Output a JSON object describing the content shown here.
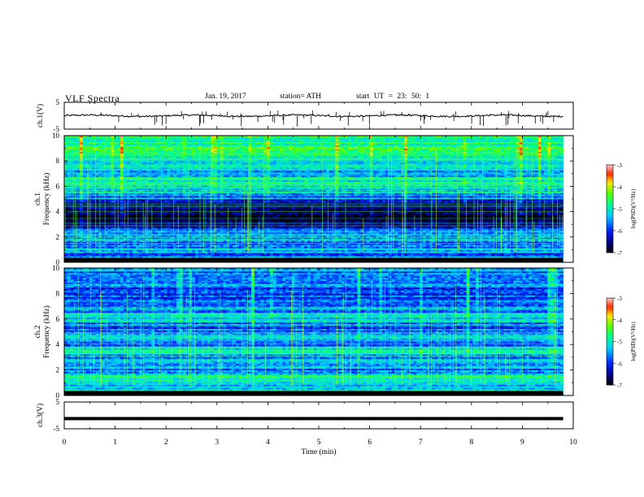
{
  "header": {
    "title": "VLF  Spectra",
    "date": "Jan. 19, 2017",
    "station": "station= ATH",
    "start": "start  UT  =   23: 50: 1"
  },
  "chart_data": [
    {
      "type": "line",
      "panel": "ch1-waveform",
      "ylabel": "ch.1(V)",
      "yticks": [
        "5",
        "-5"
      ],
      "ylim": [
        -5,
        5
      ],
      "xlim": [
        0,
        10
      ],
      "baseline_value": 0,
      "noise_amplitude": 0.6,
      "data_end_min": 9.8,
      "color": "#000000"
    },
    {
      "type": "heatmap",
      "panel": "ch1-spectrogram",
      "ylabel": "ch.1\nFrequency  (kHz)",
      "ylabel_top": "ch.1",
      "ylabel_bottom": "Frequency  (kHz)",
      "yticks": [
        "10",
        "8",
        "6",
        "4",
        "2",
        "0"
      ],
      "ylim": [
        0,
        10
      ],
      "xlim": [
        0,
        10
      ],
      "data_end_min": 9.8,
      "colorbar": {
        "label": "log(PSD)(V²/Hz)",
        "ticks": [
          "-3",
          "-4",
          "-5",
          "-6",
          "-7"
        ],
        "range": [
          -7,
          -3
        ]
      },
      "profile": [
        [
          0.0,
          -6.9
        ],
        [
          0.3,
          -5.0
        ],
        [
          0.6,
          -5.8
        ],
        [
          1.0,
          -5.3
        ],
        [
          1.5,
          -5.7
        ],
        [
          2.0,
          -5.2
        ],
        [
          2.5,
          -5.6
        ],
        [
          3.0,
          -6.6
        ],
        [
          3.5,
          -6.8
        ],
        [
          4.5,
          -6.8
        ],
        [
          5.0,
          -5.8
        ],
        [
          5.5,
          -5.2
        ],
        [
          6.0,
          -5.0
        ],
        [
          6.5,
          -4.9
        ],
        [
          7.0,
          -5.4
        ],
        [
          7.5,
          -5.2
        ],
        [
          8.0,
          -4.9
        ],
        [
          9.0,
          -4.7
        ],
        [
          10.0,
          -4.5
        ]
      ]
    },
    {
      "type": "heatmap",
      "panel": "ch2-spectrogram",
      "ylabel": "ch.2\nFrequency  (kHz)",
      "ylabel_top": "ch.2",
      "ylabel_bottom": "Frequency  (kHz)",
      "yticks": [
        "10",
        "8",
        "6",
        "4",
        "2",
        "0"
      ],
      "ylim": [
        0,
        10
      ],
      "xlim": [
        0,
        10
      ],
      "data_end_min": 9.8,
      "colorbar": {
        "label": "log(PSD)(V²/Hz)",
        "ticks": [
          "-3",
          "-4",
          "-5",
          "-6",
          "-7"
        ],
        "range": [
          -7,
          -3
        ]
      },
      "profile": [
        [
          0.0,
          -6.9
        ],
        [
          0.3,
          -5.1
        ],
        [
          0.8,
          -5.3
        ],
        [
          1.5,
          -4.9
        ],
        [
          2.0,
          -5.5
        ],
        [
          2.5,
          -5.2
        ],
        [
          3.0,
          -5.4
        ],
        [
          3.5,
          -5.0
        ],
        [
          4.0,
          -5.6
        ],
        [
          4.5,
          -5.1
        ],
        [
          5.0,
          -5.9
        ],
        [
          5.5,
          -5.6
        ],
        [
          6.0,
          -5.3
        ],
        [
          6.5,
          -5.5
        ],
        [
          7.0,
          -5.7
        ],
        [
          8.0,
          -5.8
        ],
        [
          9.0,
          -5.6
        ],
        [
          10.0,
          -5.5
        ]
      ]
    },
    {
      "type": "line",
      "panel": "ch3-waveform",
      "ylabel": "ch.3(V)",
      "yticks": [
        "5",
        "-5"
      ],
      "ylim": [
        -5,
        5
      ],
      "xlim": [
        0,
        10
      ],
      "baseline_value": -1.2,
      "noise_amplitude": 0.15,
      "data_end_min": 9.8,
      "color": "#000000"
    }
  ],
  "xaxis": {
    "label": "Time  (min)",
    "ticks": [
      "0",
      "1",
      "2",
      "3",
      "4",
      "5",
      "6",
      "7",
      "8",
      "9",
      "10"
    ],
    "range": [
      0,
      10
    ]
  }
}
